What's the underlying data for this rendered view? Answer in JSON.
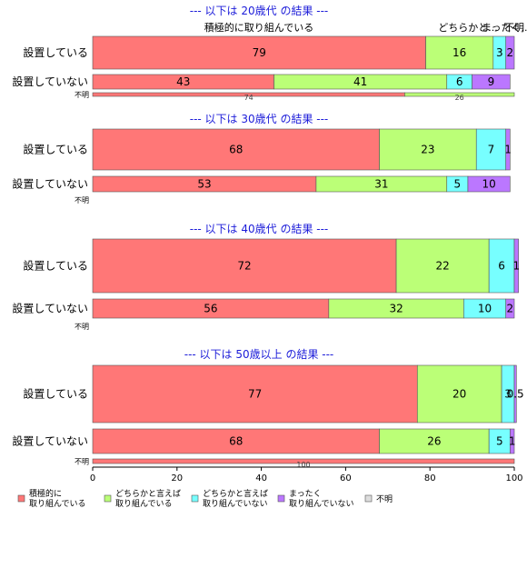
{
  "chart_data": {
    "type": "bar",
    "orientation": "horizontal",
    "stacked": true,
    "xlim": [
      0,
      100
    ],
    "x_ticks": [
      "0",
      "20",
      "40",
      "60",
      "80",
      "100"
    ],
    "colors": [
      "#ff7777",
      "#bbff77",
      "#77ffff",
      "#bb77ff",
      "#dddddd"
    ],
    "category_labels": [
      "積極的に取り組んでいる",
      "どちらかと...",
      "まったく...",
      "不明"
    ],
    "legend": [
      {
        "line1": "積極的に",
        "line2": "取り組んでいる",
        "color": "#ff7777"
      },
      {
        "line1": "どちらかと言えば",
        "line2": "取り組んでいる",
        "color": "#bbff77"
      },
      {
        "line1": "どちらかと言えば",
        "line2": "取り組んでいない",
        "color": "#77ffff"
      },
      {
        "line1": "まったく",
        "line2": "取り組んでいない",
        "color": "#bb77ff"
      },
      {
        "line1": "不明",
        "line2": "",
        "color": "#dddddd"
      }
    ],
    "groups": [
      {
        "title": "--- 以下は 20歳代 の結果 ---",
        "rows": [
          {
            "label": "設置している",
            "values": [
              79,
              16,
              3,
              2,
              0
            ],
            "small": false
          },
          {
            "label": "設置していない",
            "values": [
              43,
              41,
              6,
              9,
              0
            ],
            "small": false
          },
          {
            "label": "不明",
            "values": [
              74,
              26,
              0,
              0,
              0
            ],
            "small": true
          }
        ]
      },
      {
        "title": "--- 以下は 30歳代 の結果 ---",
        "rows": [
          {
            "label": "設置している",
            "values": [
              68,
              23,
              7,
              1,
              0
            ],
            "small": false
          },
          {
            "label": "設置していない",
            "values": [
              53,
              31,
              5,
              10,
              0
            ],
            "small": false
          },
          {
            "label": "不明",
            "values": [],
            "small": true
          }
        ]
      },
      {
        "title": "--- 以下は 40歳代 の結果 ---",
        "rows": [
          {
            "label": "設置している",
            "values": [
              72,
              22,
              6,
              1,
              0
            ],
            "small": false
          },
          {
            "label": "設置していない",
            "values": [
              56,
              32,
              10,
              2,
              0
            ],
            "small": false
          },
          {
            "label": "不明",
            "values": [],
            "small": true
          }
        ]
      },
      {
        "title": "--- 以下は 50歳以上 の結果 ---",
        "rows": [
          {
            "label": "設置している",
            "values": [
              77,
              20,
              3,
              0.5,
              0
            ],
            "small": false
          },
          {
            "label": "設置していない",
            "values": [
              68,
              26,
              5,
              1,
              0
            ],
            "small": false
          },
          {
            "label": "不明",
            "values": [
              100,
              0,
              0,
              0,
              0
            ],
            "small": true
          }
        ]
      }
    ]
  }
}
